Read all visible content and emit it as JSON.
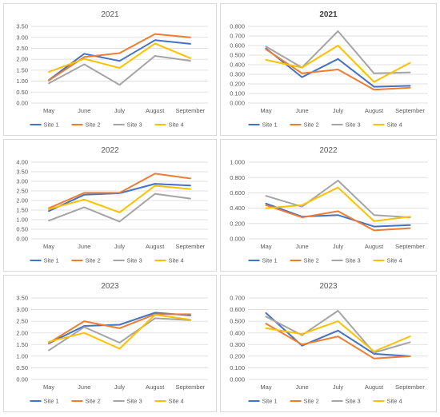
{
  "series_names": [
    "Site 1",
    "Site 2",
    "Site 3",
    "Site 4"
  ],
  "colors": [
    "#4472C4",
    "#ED7D31",
    "#A5A5A5",
    "#FFC000"
  ],
  "gridline_color": "#D9D9D9",
  "chart_data": [
    {
      "type": "line",
      "title": "2021",
      "categories": [
        "May",
        "June",
        "July",
        "August",
        "September"
      ],
      "ylim": [
        0,
        3.5
      ],
      "ytick_step": 0.5,
      "ydecimals": 2,
      "grid": true,
      "legend": "bottom",
      "series": [
        {
          "name": "Site 1",
          "values": [
            1.05,
            2.25,
            1.92,
            2.87,
            2.7
          ]
        },
        {
          "name": "Site 2",
          "values": [
            1.03,
            2.1,
            2.28,
            3.15,
            3.0
          ]
        },
        {
          "name": "Site 3",
          "values": [
            0.9,
            1.77,
            0.83,
            2.15,
            1.93
          ]
        },
        {
          "name": "Site 4",
          "values": [
            1.42,
            2.02,
            1.6,
            2.72,
            2.05
          ]
        }
      ]
    },
    {
      "type": "line",
      "title": "2021",
      "title_bold": true,
      "categories": [
        "May",
        "June",
        "July",
        "August",
        "September"
      ],
      "ylim": [
        0,
        0.8
      ],
      "ytick_step": 0.1,
      "ydecimals": 3,
      "grid": true,
      "legend": "bottom",
      "series": [
        {
          "name": "Site 1",
          "values": [
            0.57,
            0.27,
            0.46,
            0.17,
            0.18
          ]
        },
        {
          "name": "Site 2",
          "values": [
            0.56,
            0.31,
            0.35,
            0.14,
            0.16
          ]
        },
        {
          "name": "Site 3",
          "values": [
            0.59,
            0.37,
            0.75,
            0.31,
            0.32
          ]
        },
        {
          "name": "Site 4",
          "values": [
            0.45,
            0.37,
            0.6,
            0.22,
            0.42
          ]
        }
      ]
    },
    {
      "type": "line",
      "title": "2022",
      "categories": [
        "May",
        "June",
        "July",
        "August",
        "September"
      ],
      "ylim": [
        0,
        4.0
      ],
      "ytick_step": 0.5,
      "ydecimals": 2,
      "grid": true,
      "legend": "bottom",
      "series": [
        {
          "name": "Site 1",
          "values": [
            1.45,
            2.3,
            2.38,
            2.87,
            2.78
          ]
        },
        {
          "name": "Site 2",
          "values": [
            1.6,
            2.4,
            2.4,
            3.4,
            3.15
          ]
        },
        {
          "name": "Site 3",
          "values": [
            0.95,
            1.65,
            0.9,
            2.35,
            2.1
          ]
        },
        {
          "name": "Site 4",
          "values": [
            1.55,
            2.05,
            1.38,
            2.77,
            2.6
          ]
        }
      ]
    },
    {
      "type": "line",
      "title": "2022",
      "categories": [
        "May",
        "June",
        "July",
        "August",
        "September"
      ],
      "ylim": [
        0,
        1.0
      ],
      "ytick_step": 0.2,
      "ydecimals": 3,
      "grid": true,
      "legend": "bottom",
      "series": [
        {
          "name": "Site 1",
          "values": [
            0.46,
            0.29,
            0.31,
            0.16,
            0.18
          ]
        },
        {
          "name": "Site 2",
          "values": [
            0.44,
            0.28,
            0.36,
            0.11,
            0.14
          ]
        },
        {
          "name": "Site 3",
          "values": [
            0.56,
            0.42,
            0.76,
            0.31,
            0.28
          ]
        },
        {
          "name": "Site 4",
          "values": [
            0.4,
            0.44,
            0.67,
            0.23,
            0.29
          ]
        }
      ]
    },
    {
      "type": "line",
      "title": "2023",
      "categories": [
        "May",
        "June",
        "July",
        "August",
        "September"
      ],
      "ylim": [
        0,
        3.5
      ],
      "ytick_step": 0.5,
      "ydecimals": 2,
      "grid": true,
      "legend": "bottom",
      "series": [
        {
          "name": "Site 1",
          "values": [
            1.55,
            2.3,
            2.35,
            2.87,
            2.75
          ]
        },
        {
          "name": "Site 2",
          "values": [
            1.57,
            2.5,
            2.2,
            2.8,
            2.8
          ]
        },
        {
          "name": "Site 3",
          "values": [
            1.25,
            2.25,
            1.58,
            2.63,
            2.55
          ]
        },
        {
          "name": "Site 4",
          "values": [
            1.62,
            2.0,
            1.32,
            2.78,
            2.57
          ]
        }
      ]
    },
    {
      "type": "line",
      "title": "2023",
      "categories": [
        "May",
        "June",
        "July",
        "August",
        "September"
      ],
      "ylim": [
        0,
        0.7
      ],
      "ytick_step": 0.1,
      "ydecimals": 3,
      "grid": true,
      "legend": "bottom",
      "series": [
        {
          "name": "Site 1",
          "values": [
            0.57,
            0.29,
            0.42,
            0.22,
            0.2
          ]
        },
        {
          "name": "Site 2",
          "values": [
            0.48,
            0.3,
            0.37,
            0.18,
            0.2
          ]
        },
        {
          "name": "Site 3",
          "values": [
            0.54,
            0.38,
            0.59,
            0.23,
            0.32
          ]
        },
        {
          "name": "Site 4",
          "values": [
            0.44,
            0.39,
            0.5,
            0.24,
            0.37
          ]
        }
      ]
    }
  ]
}
